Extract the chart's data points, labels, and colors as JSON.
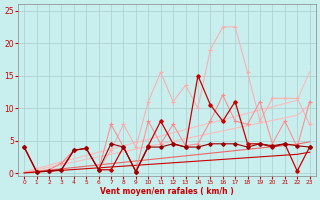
{
  "x": [
    0,
    1,
    2,
    3,
    4,
    5,
    6,
    7,
    8,
    9,
    10,
    11,
    12,
    13,
    14,
    15,
    16,
    17,
    18,
    19,
    20,
    21,
    22,
    23
  ],
  "background_color": "#c8eeee",
  "grid_color": "#aacccc",
  "xlabel": "Vent moyen/en rafales ( km/h )",
  "xlabel_color": "#cc0000",
  "yticks": [
    0,
    5,
    10,
    15,
    20,
    25
  ],
  "xlim": [
    -0.5,
    23.5
  ],
  "ylim": [
    -0.5,
    26
  ],
  "trend1_y": [
    0.2,
    0.7,
    1.2,
    1.7,
    2.2,
    2.7,
    3.2,
    3.7,
    4.2,
    4.7,
    5.2,
    5.7,
    6.2,
    6.7,
    7.2,
    7.7,
    8.2,
    8.7,
    9.2,
    9.7,
    10.2,
    10.7,
    11.2,
    15.6
  ],
  "trend1_color": "#ffbbbb",
  "trend2_y": [
    0.1,
    0.5,
    0.9,
    1.3,
    1.7,
    2.1,
    2.5,
    2.9,
    3.3,
    3.7,
    4.1,
    4.5,
    4.9,
    5.3,
    5.7,
    6.1,
    6.5,
    6.9,
    7.3,
    7.7,
    8.1,
    8.5,
    8.9,
    10.5
  ],
  "trend2_color": "#ffbbbb",
  "trend3_y": [
    0.05,
    0.25,
    0.45,
    0.65,
    0.85,
    1.05,
    1.25,
    1.45,
    1.65,
    1.85,
    2.05,
    2.25,
    2.45,
    2.65,
    2.85,
    3.05,
    3.25,
    3.45,
    3.65,
    3.85,
    4.05,
    4.25,
    4.45,
    4.8
  ],
  "trend3_color": "#ee6666",
  "trend4_y": [
    0.02,
    0.15,
    0.28,
    0.41,
    0.54,
    0.67,
    0.8,
    0.93,
    1.06,
    1.19,
    1.32,
    1.45,
    1.58,
    1.71,
    1.84,
    1.97,
    2.1,
    2.23,
    2.36,
    2.49,
    2.62,
    2.75,
    2.88,
    3.2
  ],
  "trend4_color": "#cc0000",
  "line_lightp_y": [
    4.0,
    0.3,
    0.5,
    1.5,
    3.5,
    3.8,
    0.5,
    3.5,
    7.5,
    4.0,
    11.0,
    15.5,
    11.0,
    13.5,
    10.0,
    19.0,
    22.5,
    22.5,
    15.5,
    8.0,
    11.5,
    11.5,
    11.5,
    7.5
  ],
  "line_lightp_color": "#ffaaaa",
  "line_medp_y": [
    4.0,
    0.3,
    0.5,
    1.5,
    3.5,
    3.8,
    0.5,
    7.5,
    4.0,
    0.3,
    8.0,
    4.5,
    7.5,
    4.2,
    4.5,
    8.0,
    12.0,
    8.0,
    7.5,
    11.0,
    4.5,
    8.0,
    4.0,
    11.0
  ],
  "line_medp_color": "#ff8888",
  "line_red_y": [
    4.0,
    0.2,
    0.3,
    0.5,
    3.5,
    3.8,
    0.5,
    0.5,
    4.0,
    0.2,
    4.2,
    8.0,
    4.5,
    4.0,
    15.0,
    10.5,
    8.0,
    11.0,
    4.5,
    4.5,
    4.0,
    4.5,
    0.3,
    4.0
  ],
  "line_red_color": "#cc0000",
  "line_dkred_y": [
    4.0,
    0.2,
    0.3,
    0.5,
    3.5,
    3.8,
    0.5,
    4.5,
    4.0,
    0.2,
    4.0,
    4.0,
    4.5,
    4.0,
    4.0,
    4.5,
    4.5,
    4.5,
    4.0,
    4.5,
    4.2,
    4.5,
    4.2,
    4.0
  ],
  "line_dkred_color": "#990000"
}
